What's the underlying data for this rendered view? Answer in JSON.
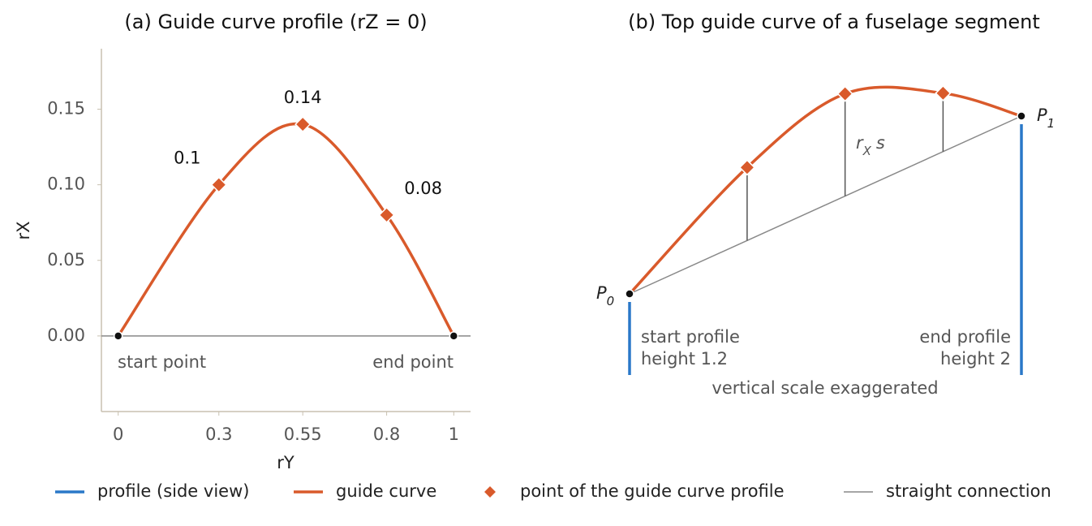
{
  "chart_data": [
    {
      "type": "line",
      "title": "(a) Guide curve profile (rZ = 0)",
      "x_label": "rY",
      "y_label": "rX",
      "series": [
        {
          "color": "#d95a2b",
          "x": [
            0,
            0.3,
            0.55,
            0.8,
            1
          ],
          "values": [
            0,
            0.1,
            0.14,
            0.08,
            0
          ],
          "value_labels": [
            null,
            "0.1",
            "0.14",
            "0.08",
            null
          ]
        }
      ],
      "xlim": [
        -0.05,
        1.05
      ],
      "ylim": [
        -0.05,
        0.19
      ],
      "xticks": [
        0,
        0.3,
        0.55,
        0.8,
        1
      ],
      "yticks": [
        {
          "value": 0,
          "label": "0.00"
        },
        {
          "value": 0.05,
          "label": "0.05"
        },
        {
          "value": 0.1,
          "label": "0.10"
        },
        {
          "value": 0.15,
          "label": "0.15"
        }
      ],
      "annotations": [
        "start point",
        "end point"
      ]
    },
    {
      "type": "guide",
      "title": "(b) Top guide curve of a fuselage segment",
      "p0_label": [
        "P",
        "0"
      ],
      "p1_label": [
        "P",
        "1"
      ],
      "offset_label": [
        "r",
        "X",
        "s"
      ],
      "start_label": [
        "start profile",
        "height 1.2"
      ],
      "end_label": [
        "end profile",
        "height 2"
      ],
      "note": "vertical scale exaggerated"
    }
  ],
  "legend": [
    {
      "name": "profile (side view)",
      "color": "#2a78c8",
      "kind": "line"
    },
    {
      "name": "guide curve",
      "color": "#d95a2b",
      "kind": "line"
    },
    {
      "name": "point of the guide curve profile",
      "color": "#d95a2b",
      "kind": "diamond"
    },
    {
      "name": "straight connection",
      "color": "#888888",
      "kind": "thin"
    }
  ]
}
